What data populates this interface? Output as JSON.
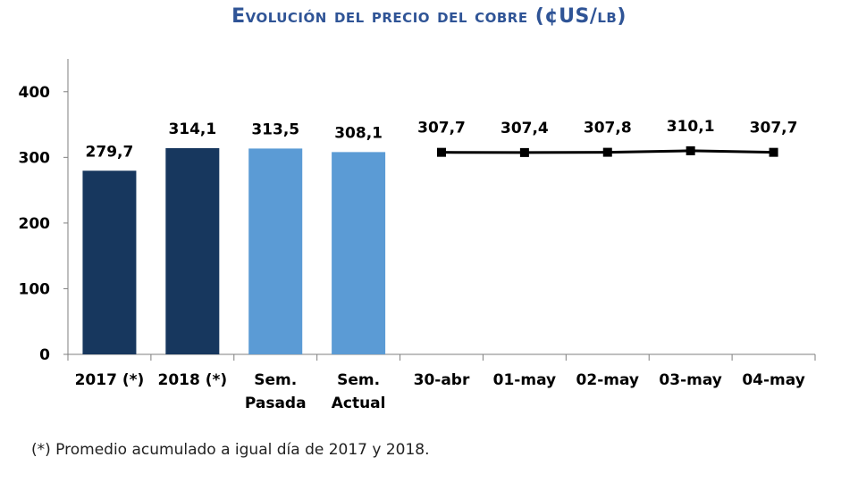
{
  "title": "Evolución del precio del cobre (¢US/lb)",
  "footnote": "(*) Promedio acumulado a igual día de 2017 y 2018.",
  "chart_data": {
    "type": "bar",
    "ylim": [
      0,
      450
    ],
    "yticks": [
      0,
      100,
      200,
      300,
      400
    ],
    "grid": false,
    "categories": [
      [
        "2017 (*)"
      ],
      [
        "2018 (*)"
      ],
      [
        "Sem.",
        "Pasada"
      ],
      [
        "Sem.",
        "Actual"
      ],
      [
        "30-abr"
      ],
      [
        "01-may"
      ],
      [
        "02-may"
      ],
      [
        "03-may"
      ],
      [
        "04-may"
      ]
    ],
    "bars": [
      {
        "category_index": 0,
        "value": 279.7,
        "label": "279,7",
        "color": "#17375E"
      },
      {
        "category_index": 1,
        "value": 314.1,
        "label": "314,1",
        "color": "#17375E"
      },
      {
        "category_index": 2,
        "value": 313.5,
        "label": "313,5",
        "color": "#5B9BD5"
      },
      {
        "category_index": 3,
        "value": 308.1,
        "label": "308,1",
        "color": "#5B9BD5"
      }
    ],
    "line": {
      "type": "line",
      "color": "#000000",
      "marker": "square",
      "points": [
        {
          "category_index": 4,
          "value": 307.7,
          "label": "307,7"
        },
        {
          "category_index": 5,
          "value": 307.4,
          "label": "307,4"
        },
        {
          "category_index": 6,
          "value": 307.8,
          "label": "307,8"
        },
        {
          "category_index": 7,
          "value": 310.1,
          "label": "310,1"
        },
        {
          "category_index": 8,
          "value": 307.7,
          "label": "307,7"
        }
      ]
    }
  }
}
